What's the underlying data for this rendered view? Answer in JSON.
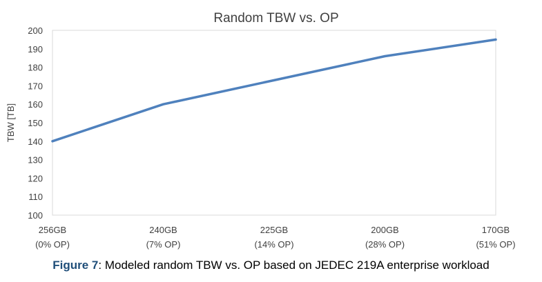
{
  "chart_data": {
    "type": "line",
    "title": "Random TBW vs. OP",
    "ylabel": "TBW [TB]",
    "xlabel": "",
    "categories": [
      [
        "256GB",
        "(0% OP)"
      ],
      [
        "240GB",
        "(7% OP)"
      ],
      [
        "225GB",
        "(14% OP)"
      ],
      [
        "200GB",
        "(28% OP)"
      ],
      [
        "170GB",
        "(51% OP)"
      ]
    ],
    "series": [
      {
        "values": [
          140,
          160,
          173,
          186,
          195
        ],
        "color": "#4f81bd"
      }
    ],
    "ylim": [
      100,
      200
    ],
    "yticks": [
      100,
      110,
      120,
      130,
      140,
      150,
      160,
      170,
      180,
      190,
      200
    ],
    "grid": false,
    "legend": "none"
  },
  "caption": {
    "label": "Figure 7",
    "text": ": Modeled random TBW vs. OP based on JEDEC 219A enterprise workload",
    "label_color": "#1f4e79"
  }
}
